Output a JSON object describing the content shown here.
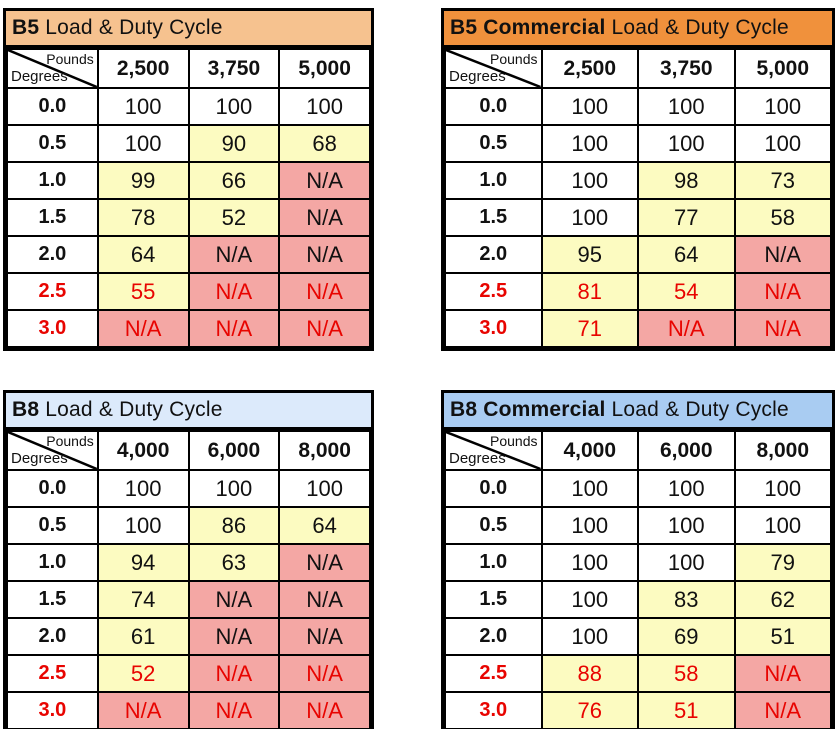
{
  "corner_labels": {
    "top": "Pounds",
    "bottom": "Degrees"
  },
  "palette": {
    "white": "#FFFFFF",
    "yellow": "#FCFBC1",
    "pink": "#F4A7A4",
    "red_text": "#E80400",
    "b5_title_bg": "#F6C28F",
    "b5c_title_bg": "#F0913C",
    "b8_title_bg": "#DCEAFB",
    "b8c_title_bg": "#A9CCF2"
  },
  "tables": [
    {
      "key": "b5",
      "title_bold": "B5",
      "title_rest": " Load & Duty Cycle",
      "title_bg": "b5_title_bg",
      "columns": [
        "2,500",
        "3,750",
        "5,000"
      ],
      "rows": [
        {
          "degrees": "0.0",
          "red": false,
          "cells": [
            {
              "v": "100",
              "bg": "white"
            },
            {
              "v": "100",
              "bg": "white"
            },
            {
              "v": "100",
              "bg": "white"
            }
          ]
        },
        {
          "degrees": "0.5",
          "red": false,
          "cells": [
            {
              "v": "100",
              "bg": "white"
            },
            {
              "v": "90",
              "bg": "yellow"
            },
            {
              "v": "68",
              "bg": "yellow"
            }
          ]
        },
        {
          "degrees": "1.0",
          "red": false,
          "cells": [
            {
              "v": "99",
              "bg": "yellow"
            },
            {
              "v": "66",
              "bg": "yellow"
            },
            {
              "v": "N/A",
              "bg": "pink"
            }
          ]
        },
        {
          "degrees": "1.5",
          "red": false,
          "cells": [
            {
              "v": "78",
              "bg": "yellow"
            },
            {
              "v": "52",
              "bg": "yellow"
            },
            {
              "v": "N/A",
              "bg": "pink"
            }
          ]
        },
        {
          "degrees": "2.0",
          "red": false,
          "cells": [
            {
              "v": "64",
              "bg": "yellow"
            },
            {
              "v": "N/A",
              "bg": "pink"
            },
            {
              "v": "N/A",
              "bg": "pink"
            }
          ]
        },
        {
          "degrees": "2.5",
          "red": true,
          "cells": [
            {
              "v": "55",
              "bg": "yellow"
            },
            {
              "v": "N/A",
              "bg": "pink"
            },
            {
              "v": "N/A",
              "bg": "pink"
            }
          ]
        },
        {
          "degrees": "3.0",
          "red": true,
          "cells": [
            {
              "v": "N/A",
              "bg": "pink"
            },
            {
              "v": "N/A",
              "bg": "pink"
            },
            {
              "v": "N/A",
              "bg": "pink"
            }
          ]
        }
      ]
    },
    {
      "key": "b5-commercial",
      "title_bold": "B5 Commercial",
      "title_rest": " Load & Duty Cycle",
      "title_bg": "b5c_title_bg",
      "columns": [
        "2,500",
        "3,750",
        "5,000"
      ],
      "rows": [
        {
          "degrees": "0.0",
          "red": false,
          "cells": [
            {
              "v": "100",
              "bg": "white"
            },
            {
              "v": "100",
              "bg": "white"
            },
            {
              "v": "100",
              "bg": "white"
            }
          ]
        },
        {
          "degrees": "0.5",
          "red": false,
          "cells": [
            {
              "v": "100",
              "bg": "white"
            },
            {
              "v": "100",
              "bg": "white"
            },
            {
              "v": "100",
              "bg": "white"
            }
          ]
        },
        {
          "degrees": "1.0",
          "red": false,
          "cells": [
            {
              "v": "100",
              "bg": "white"
            },
            {
              "v": "98",
              "bg": "yellow"
            },
            {
              "v": "73",
              "bg": "yellow"
            }
          ]
        },
        {
          "degrees": "1.5",
          "red": false,
          "cells": [
            {
              "v": "100",
              "bg": "white"
            },
            {
              "v": "77",
              "bg": "yellow"
            },
            {
              "v": "58",
              "bg": "yellow"
            }
          ]
        },
        {
          "degrees": "2.0",
          "red": false,
          "cells": [
            {
              "v": "95",
              "bg": "yellow"
            },
            {
              "v": "64",
              "bg": "yellow"
            },
            {
              "v": "N/A",
              "bg": "pink"
            }
          ]
        },
        {
          "degrees": "2.5",
          "red": true,
          "cells": [
            {
              "v": "81",
              "bg": "yellow"
            },
            {
              "v": "54",
              "bg": "yellow"
            },
            {
              "v": "N/A",
              "bg": "pink"
            }
          ]
        },
        {
          "degrees": "3.0",
          "red": true,
          "cells": [
            {
              "v": "71",
              "bg": "yellow"
            },
            {
              "v": "N/A",
              "bg": "pink"
            },
            {
              "v": "N/A",
              "bg": "pink"
            }
          ]
        }
      ]
    },
    {
      "key": "b8",
      "title_bold": "B8",
      "title_rest": " Load & Duty Cycle",
      "title_bg": "b8_title_bg",
      "columns": [
        "4,000",
        "6,000",
        "8,000"
      ],
      "rows": [
        {
          "degrees": "0.0",
          "red": false,
          "cells": [
            {
              "v": "100",
              "bg": "white"
            },
            {
              "v": "100",
              "bg": "white"
            },
            {
              "v": "100",
              "bg": "white"
            }
          ]
        },
        {
          "degrees": "0.5",
          "red": false,
          "cells": [
            {
              "v": "100",
              "bg": "white"
            },
            {
              "v": "86",
              "bg": "yellow"
            },
            {
              "v": "64",
              "bg": "yellow"
            }
          ]
        },
        {
          "degrees": "1.0",
          "red": false,
          "cells": [
            {
              "v": "94",
              "bg": "yellow"
            },
            {
              "v": "63",
              "bg": "yellow"
            },
            {
              "v": "N/A",
              "bg": "pink"
            }
          ]
        },
        {
          "degrees": "1.5",
          "red": false,
          "cells": [
            {
              "v": "74",
              "bg": "yellow"
            },
            {
              "v": "N/A",
              "bg": "pink"
            },
            {
              "v": "N/A",
              "bg": "pink"
            }
          ]
        },
        {
          "degrees": "2.0",
          "red": false,
          "cells": [
            {
              "v": "61",
              "bg": "yellow"
            },
            {
              "v": "N/A",
              "bg": "pink"
            },
            {
              "v": "N/A",
              "bg": "pink"
            }
          ]
        },
        {
          "degrees": "2.5",
          "red": true,
          "cells": [
            {
              "v": "52",
              "bg": "yellow"
            },
            {
              "v": "N/A",
              "bg": "pink"
            },
            {
              "v": "N/A",
              "bg": "pink"
            }
          ]
        },
        {
          "degrees": "3.0",
          "red": true,
          "cells": [
            {
              "v": "N/A",
              "bg": "pink"
            },
            {
              "v": "N/A",
              "bg": "pink"
            },
            {
              "v": "N/A",
              "bg": "pink"
            }
          ]
        }
      ]
    },
    {
      "key": "b8-commercial",
      "title_bold": "B8 Commercial",
      "title_rest": " Load & Duty Cycle",
      "title_bg": "b8c_title_bg",
      "columns": [
        "4,000",
        "6,000",
        "8,000"
      ],
      "rows": [
        {
          "degrees": "0.0",
          "red": false,
          "cells": [
            {
              "v": "100",
              "bg": "white"
            },
            {
              "v": "100",
              "bg": "white"
            },
            {
              "v": "100",
              "bg": "white"
            }
          ]
        },
        {
          "degrees": "0.5",
          "red": false,
          "cells": [
            {
              "v": "100",
              "bg": "white"
            },
            {
              "v": "100",
              "bg": "white"
            },
            {
              "v": "100",
              "bg": "white"
            }
          ]
        },
        {
          "degrees": "1.0",
          "red": false,
          "cells": [
            {
              "v": "100",
              "bg": "white"
            },
            {
              "v": "100",
              "bg": "white"
            },
            {
              "v": "79",
              "bg": "yellow"
            }
          ]
        },
        {
          "degrees": "1.5",
          "red": false,
          "cells": [
            {
              "v": "100",
              "bg": "white"
            },
            {
              "v": "83",
              "bg": "yellow"
            },
            {
              "v": "62",
              "bg": "yellow"
            }
          ]
        },
        {
          "degrees": "2.0",
          "red": false,
          "cells": [
            {
              "v": "100",
              "bg": "white"
            },
            {
              "v": "69",
              "bg": "yellow"
            },
            {
              "v": "51",
              "bg": "yellow"
            }
          ]
        },
        {
          "degrees": "2.5",
          "red": true,
          "cells": [
            {
              "v": "88",
              "bg": "yellow"
            },
            {
              "v": "58",
              "bg": "yellow"
            },
            {
              "v": "N/A",
              "bg": "pink"
            }
          ]
        },
        {
          "degrees": "3.0",
          "red": true,
          "cells": [
            {
              "v": "76",
              "bg": "yellow"
            },
            {
              "v": "51",
              "bg": "yellow"
            },
            {
              "v": "N/A",
              "bg": "pink"
            }
          ]
        }
      ]
    }
  ]
}
